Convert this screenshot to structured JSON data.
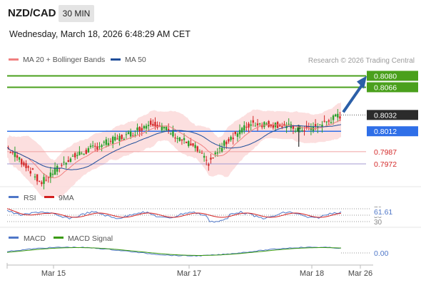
{
  "header": {
    "symbol": "NZD/CAD",
    "timeframe": "30 MIN",
    "datetime": "Wednesday, March 18, 2026 6:48:29 AM CET"
  },
  "legend": {
    "items": [
      {
        "label": "MA 20 + Bollinger Bands",
        "color": "#f08080"
      },
      {
        "label": "MA 50",
        "color": "#1f4e9a"
      }
    ],
    "credit": "Research © 2026 Trading Central"
  },
  "chart_data": {
    "type": "candlestick",
    "yrange": [
      0.7944,
      0.809
    ],
    "x_labels": [
      "Mar 15",
      "Mar 17",
      "Mar 18",
      "Mar 26"
    ],
    "price_tags": [
      {
        "value": 0.808,
        "label": "0.8080",
        "style": "resistance",
        "color": "#4aa01c"
      },
      {
        "value": 0.8066,
        "label": "0.8066",
        "style": "resistance",
        "color": "#4aa01c"
      },
      {
        "value": 0.8032,
        "label": "0.8032",
        "style": "last",
        "color": "#2b2b2b"
      },
      {
        "value": 0.8012,
        "label": "0.8012",
        "style": "pivot",
        "color": "#2f6fe8"
      },
      {
        "value": 0.7987,
        "label": "0.7987",
        "style": "support",
        "color": "#e05050"
      },
      {
        "value": 0.7972,
        "label": "0.7972",
        "style": "support",
        "color": "#7d6fb0"
      }
    ],
    "key_points": [
      {
        "label": "start",
        "price": 0.7992
      },
      {
        "label": "low Mar 15",
        "price": 0.7948
      },
      {
        "label": "high Mar 17",
        "price": 0.8024
      },
      {
        "label": "low Mar 17",
        "price": 0.7972
      },
      {
        "label": "spike low Mar 18",
        "price": 0.7993
      },
      {
        "label": "last",
        "price": 0.8032
      }
    ],
    "rsi": {
      "legend": [
        {
          "label": "RSI",
          "color": "#4f77c8"
        },
        {
          "label": "9MA",
          "color": "#d42020"
        }
      ],
      "value_label": "61.61",
      "levels": [
        "70",
        "50",
        "30"
      ]
    },
    "macd": {
      "legend": [
        {
          "label": "MACD",
          "color": "#4f77c8"
        },
        {
          "label": "MACD Signal",
          "color": "#3a9a10"
        }
      ],
      "value_label": "0.00"
    }
  }
}
